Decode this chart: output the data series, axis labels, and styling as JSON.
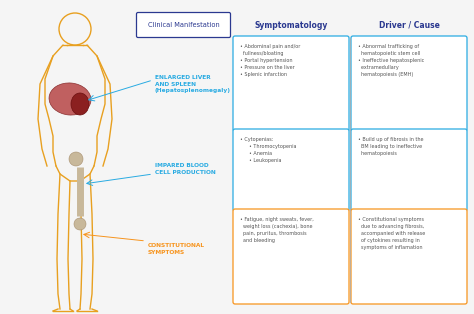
{
  "background_color": "#f5f5f5",
  "body_outline_color": "#E8A020",
  "cyan_color": "#29ABE2",
  "orange_color": "#F7941D",
  "dark_blue_color": "#2B3990",
  "text_color": "#555555",
  "col_manifest_label": "Clinical Manifestation",
  "col_symptom_label": "Symptomatology",
  "col_driver_label": "Driver / Cause",
  "manifest_labels": [
    "ENLARGED LIVER\nAND SPLEEN\n(Hepatosplenomegaly)",
    "IMPARED BLOOD\nCELL PRODUCTION",
    "CONSTITUTIONAL\nSYMPTOMS"
  ],
  "manifest_colors": [
    "#29ABE2",
    "#29ABE2",
    "#F7941D"
  ],
  "symptom_texts": [
    "• Abdominal pain and/or\n  fullness/bloating\n• Portal hypertension\n• Pressure on the liver\n• Splenic infarction",
    "• Cytopenias:\n      • Thromocytopenia\n      • Anemia\n      • Leukopenia",
    "• Fatigue, night sweats, fever,\n  weight loss (cachexia), bone\n  pain, pruritus, thrombosis\n  and bleeding"
  ],
  "driver_texts": [
    "• Abnormal trafficking of\n  hematopoietic stem cell\n• Ineffective hepatosplenic\n  extramedullary\n  hematopoiesis (EMH)",
    "• Build up of fibrosis in the\n  BM leading to ineffective\n  hematopoiesis",
    "• Constitutional symptoms\n  due to advancing fibrosis,\n  accompanied with release\n  of cytokines resulting in\n  symptoms of inflamation"
  ]
}
